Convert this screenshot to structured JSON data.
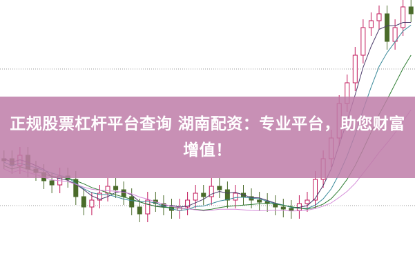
{
  "article": {
    "title": "正规股票杠杆平台查询 湖南配资：专业平台，助您财富增值！"
  },
  "colors": {
    "banner": "#c58cb4",
    "candle_up": "#c2185b",
    "candle_down": "#4a6b2a",
    "ma_short": "#4a3a6a",
    "ma_mid": "#2e7d32",
    "ma_long": "#d48ad8",
    "ma_teal": "#3a8a9a",
    "grid": "#999999"
  },
  "background_chart": {
    "type": "candlestick",
    "gridlines": "dotted horizontal"
  }
}
